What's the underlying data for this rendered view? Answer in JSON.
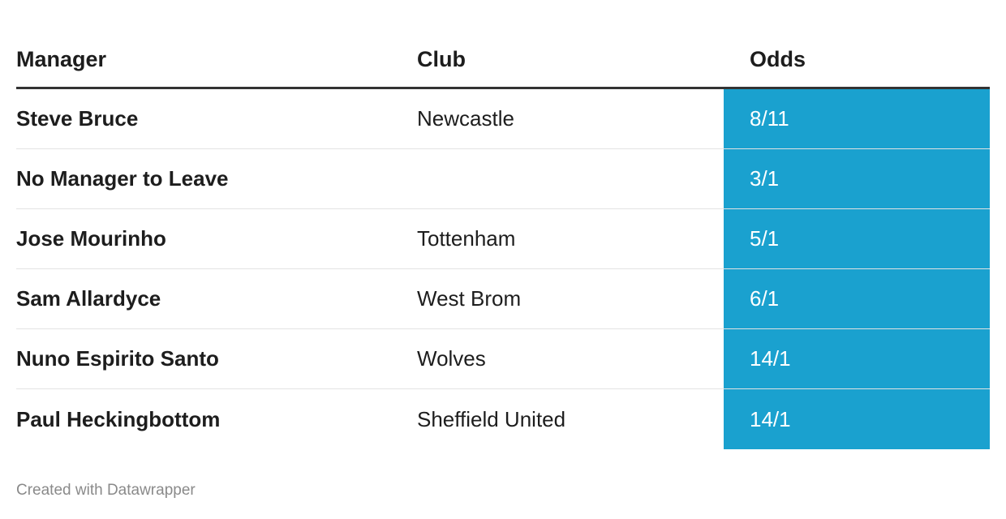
{
  "table": {
    "header": [
      "Manager",
      "Club",
      "Odds"
    ],
    "rows": [
      [
        "Steve Bruce",
        "Newcastle",
        "8/11"
      ],
      [
        "No Manager to Leave",
        null,
        "3/1"
      ],
      [
        "Jose Mourinho",
        "Tottenham",
        "5/1"
      ],
      [
        "Sam Allardyce",
        "West Brom",
        "6/1"
      ],
      [
        "Nuno Espirito Santo",
        "Wolves",
        "14/1"
      ],
      [
        "Paul Heckingbottom",
        "Sheffield United",
        "14/1"
      ]
    ]
  },
  "footer": "Created with Datawrapper"
}
